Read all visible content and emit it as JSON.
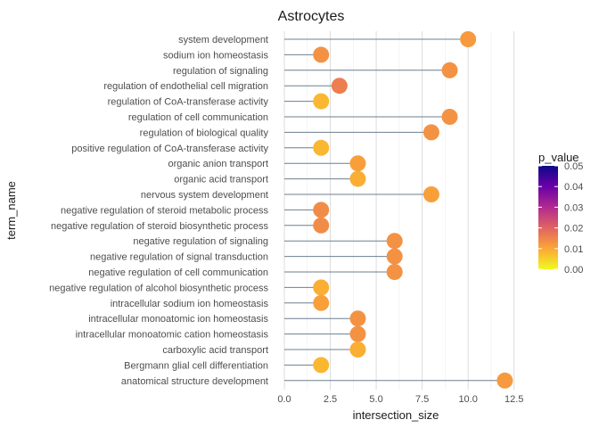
{
  "chart_data": {
    "type": "lollipop",
    "title": "Astrocytes",
    "xlabel": "intersection_size",
    "ylabel": "term_name",
    "xlim": [
      0,
      13
    ],
    "x_ticks": [
      0,
      2.5,
      5,
      7.5,
      10,
      12.5
    ],
    "x_tick_labels": [
      "0.0",
      "2.5",
      "5.0",
      "7.5",
      "10.0",
      "12.5"
    ],
    "grid": true,
    "legend": {
      "title": "p_value",
      "placement": "right",
      "range": [
        0,
        0.05
      ],
      "ticks": [
        "0.00",
        "0.01",
        "0.02",
        "0.03",
        "0.04",
        "0.05"
      ],
      "colors": [
        "#F0F921",
        "#FCA636",
        "#E16462",
        "#B12A90",
        "#6A00A8",
        "#0D0887"
      ]
    },
    "points": [
      {
        "term": "system development",
        "x": 10,
        "p_value": 0.012
      },
      {
        "term": "sodium ion homeostasis",
        "x": 2,
        "p_value": 0.013
      },
      {
        "term": "regulation of signaling",
        "x": 9,
        "p_value": 0.013
      },
      {
        "term": "regulation of endothelial cell migration",
        "x": 3,
        "p_value": 0.016
      },
      {
        "term": "regulation of CoA-transferase activity",
        "x": 2,
        "p_value": 0.008
      },
      {
        "term": "regulation of cell communication",
        "x": 9,
        "p_value": 0.013
      },
      {
        "term": "regulation of biological quality",
        "x": 8,
        "p_value": 0.013
      },
      {
        "term": "positive regulation of CoA-transferase activity",
        "x": 2,
        "p_value": 0.008
      },
      {
        "term": "organic anion transport",
        "x": 4,
        "p_value": 0.011
      },
      {
        "term": "organic acid transport",
        "x": 4,
        "p_value": 0.009
      },
      {
        "term": "nervous system development",
        "x": 8,
        "p_value": 0.011
      },
      {
        "term": "negative regulation of steroid metabolic process",
        "x": 2,
        "p_value": 0.014
      },
      {
        "term": "negative regulation of steroid biosynthetic process",
        "x": 2,
        "p_value": 0.014
      },
      {
        "term": "negative regulation of signaling",
        "x": 6,
        "p_value": 0.013
      },
      {
        "term": "negative regulation of signal transduction",
        "x": 6,
        "p_value": 0.013
      },
      {
        "term": "negative regulation of cell communication",
        "x": 6,
        "p_value": 0.013
      },
      {
        "term": "negative regulation of alcohol biosynthetic process",
        "x": 2,
        "p_value": 0.009
      },
      {
        "term": "intracellular sodium ion homeostasis",
        "x": 2,
        "p_value": 0.011
      },
      {
        "term": "intracellular monoatomic ion homeostasis",
        "x": 4,
        "p_value": 0.013
      },
      {
        "term": "intracellular monoatomic cation homeostasis",
        "x": 4,
        "p_value": 0.013
      },
      {
        "term": "carboxylic acid transport",
        "x": 4,
        "p_value": 0.009
      },
      {
        "term": "Bergmann glial cell differentiation",
        "x": 2,
        "p_value": 0.008
      },
      {
        "term": "anatomical structure development",
        "x": 12,
        "p_value": 0.012
      }
    ]
  }
}
